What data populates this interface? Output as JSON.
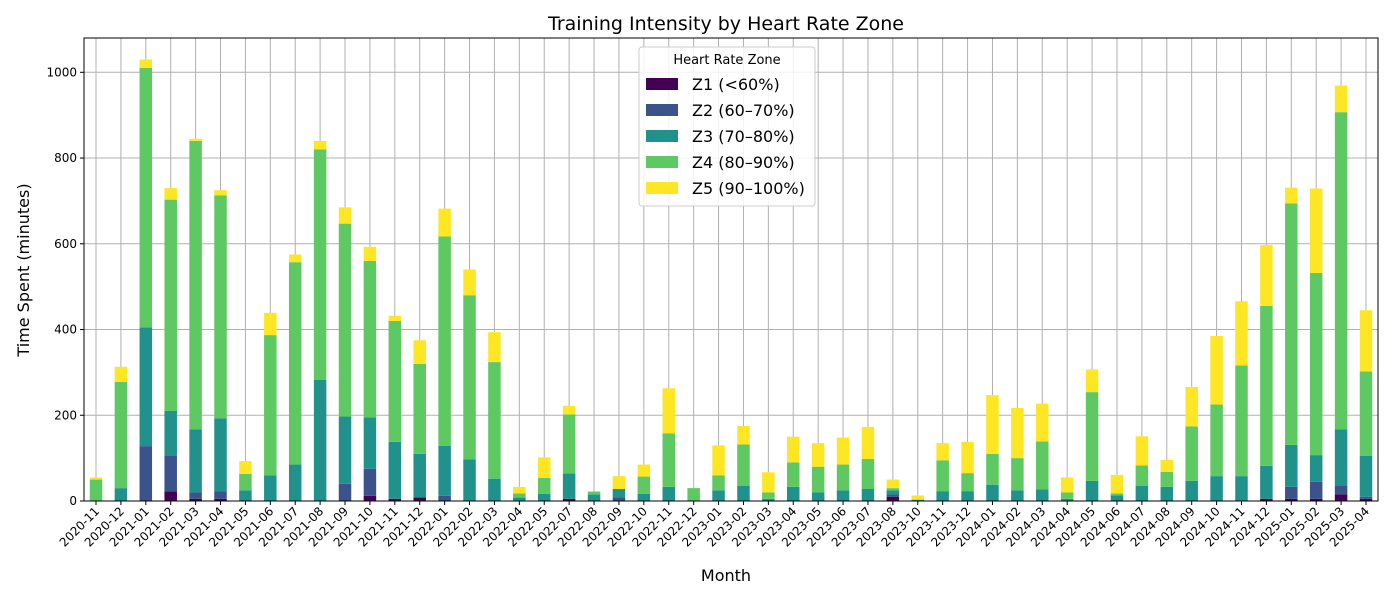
{
  "chart_data": {
    "type": "bar",
    "stacked": true,
    "title": "Training Intensity by Heart Rate Zone",
    "xlabel": "Month",
    "ylabel": "Time Spent (minutes)",
    "ylim": [
      0,
      1080
    ],
    "yticks": [
      0,
      200,
      400,
      600,
      800,
      1000
    ],
    "grid": true,
    "legend": {
      "title": "Heart Rate Zone",
      "placement": "top-center"
    },
    "categories": [
      "2020-11",
      "2020-12",
      "2021-01",
      "2021-02",
      "2021-03",
      "2021-04",
      "2021-05",
      "2021-06",
      "2021-07",
      "2021-08",
      "2021-09",
      "2021-10",
      "2021-11",
      "2021-12",
      "2022-01",
      "2022-02",
      "2022-03",
      "2022-04",
      "2022-05",
      "2022-07",
      "2022-08",
      "2022-09",
      "2022-10",
      "2022-11",
      "2022-12",
      "2023-01",
      "2023-02",
      "2023-03",
      "2023-04",
      "2023-05",
      "2023-06",
      "2023-07",
      "2023-08",
      "2023-10",
      "2023-11",
      "2023-12",
      "2024-01",
      "2024-02",
      "2024-03",
      "2024-04",
      "2024-05",
      "2024-06",
      "2024-07",
      "2024-08",
      "2024-09",
      "2024-10",
      "2024-11",
      "2024-12",
      "2025-01",
      "2025-02",
      "2025-03",
      "2025-04"
    ],
    "series": [
      {
        "name": "Z1 (<60%)",
        "color": "#440154",
        "values": [
          0,
          0,
          0,
          22,
          5,
          5,
          0,
          0,
          0,
          0,
          0,
          12,
          5,
          8,
          0,
          0,
          0,
          0,
          0,
          5,
          0,
          0,
          0,
          0,
          0,
          0,
          0,
          0,
          0,
          0,
          0,
          0,
          10,
          0,
          0,
          0,
          0,
          0,
          0,
          0,
          0,
          0,
          0,
          0,
          0,
          0,
          0,
          5,
          5,
          5,
          15,
          5
        ]
      },
      {
        "name": "Z2 (60–70%)",
        "color": "#3b528b",
        "values": [
          0,
          0,
          128,
          83,
          15,
          18,
          0,
          0,
          0,
          0,
          40,
          63,
          0,
          0,
          12,
          0,
          0,
          0,
          0,
          0,
          0,
          8,
          0,
          0,
          0,
          0,
          0,
          0,
          0,
          0,
          0,
          0,
          5,
          0,
          0,
          0,
          0,
          0,
          0,
          0,
          0,
          0,
          0,
          0,
          0,
          0,
          0,
          0,
          28,
          40,
          20,
          5
        ]
      },
      {
        "name": "Z3 (70–80%)",
        "color": "#21918c",
        "values": [
          0,
          30,
          277,
          105,
          147,
          170,
          25,
          60,
          85,
          283,
          157,
          120,
          133,
          102,
          117,
          97,
          52,
          8,
          17,
          59,
          15,
          20,
          17,
          33,
          0,
          25,
          35,
          5,
          33,
          20,
          25,
          28,
          10,
          3,
          23,
          23,
          38,
          25,
          27,
          5,
          47,
          13,
          35,
          33,
          47,
          58,
          58,
          77,
          98,
          62,
          132,
          95
        ]
      },
      {
        "name": "Z4 (80–90%)",
        "color": "#5ec962",
        "values": [
          50,
          248,
          605,
          493,
          673,
          520,
          38,
          327,
          472,
          537,
          450,
          365,
          282,
          210,
          488,
          383,
          272,
          10,
          37,
          138,
          7,
          0,
          40,
          125,
          30,
          35,
          97,
          15,
          57,
          60,
          60,
          70,
          5,
          0,
          72,
          42,
          72,
          75,
          112,
          15,
          207,
          5,
          48,
          35,
          127,
          167,
          258,
          373,
          563,
          425,
          740,
          197
        ]
      },
      {
        "name": "Z5 (90–100%)",
        "color": "#fde725",
        "values": [
          5,
          35,
          20,
          27,
          5,
          12,
          30,
          52,
          18,
          20,
          38,
          33,
          12,
          55,
          65,
          60,
          70,
          15,
          48,
          20,
          0,
          30,
          28,
          105,
          0,
          70,
          43,
          47,
          60,
          55,
          63,
          75,
          20,
          10,
          40,
          73,
          137,
          117,
          88,
          35,
          53,
          43,
          68,
          28,
          92,
          160,
          150,
          142,
          37,
          197,
          62,
          143
        ]
      }
    ]
  }
}
